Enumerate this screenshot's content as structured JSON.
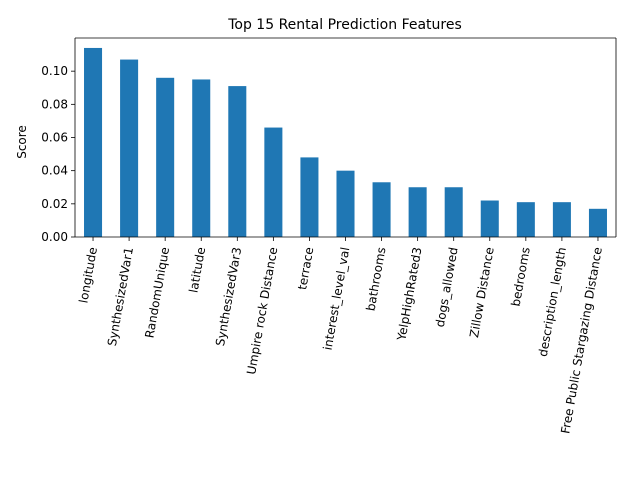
{
  "chart_data": {
    "type": "bar",
    "title": "Top 15 Rental Prediction Features",
    "xlabel": "",
    "ylabel": "Score",
    "categories": [
      "longitude",
      "SynthesizedVar1",
      "RandomUnique",
      "latitude",
      "SynthesizedVar3",
      "Umpire rock Distance",
      "terrace",
      "interest_level_val",
      "bathrooms",
      "YelpHighRated3",
      "dogs_allowed",
      "Zillow Distance",
      "bedrooms",
      "description_length",
      "Free Public Stargazing Distance"
    ],
    "values": [
      0.114,
      0.107,
      0.096,
      0.095,
      0.091,
      0.066,
      0.048,
      0.04,
      0.033,
      0.03,
      0.03,
      0.022,
      0.021,
      0.021,
      0.017
    ],
    "ylim": [
      0,
      0.12
    ],
    "yticks": [
      0.0,
      0.02,
      0.04,
      0.06,
      0.08,
      0.1
    ],
    "ytick_labels": [
      "0.00",
      "0.02",
      "0.04",
      "0.06",
      "0.08",
      "0.10"
    ],
    "bar_color": "#1f77b4",
    "grid": false,
    "legend": "none"
  }
}
